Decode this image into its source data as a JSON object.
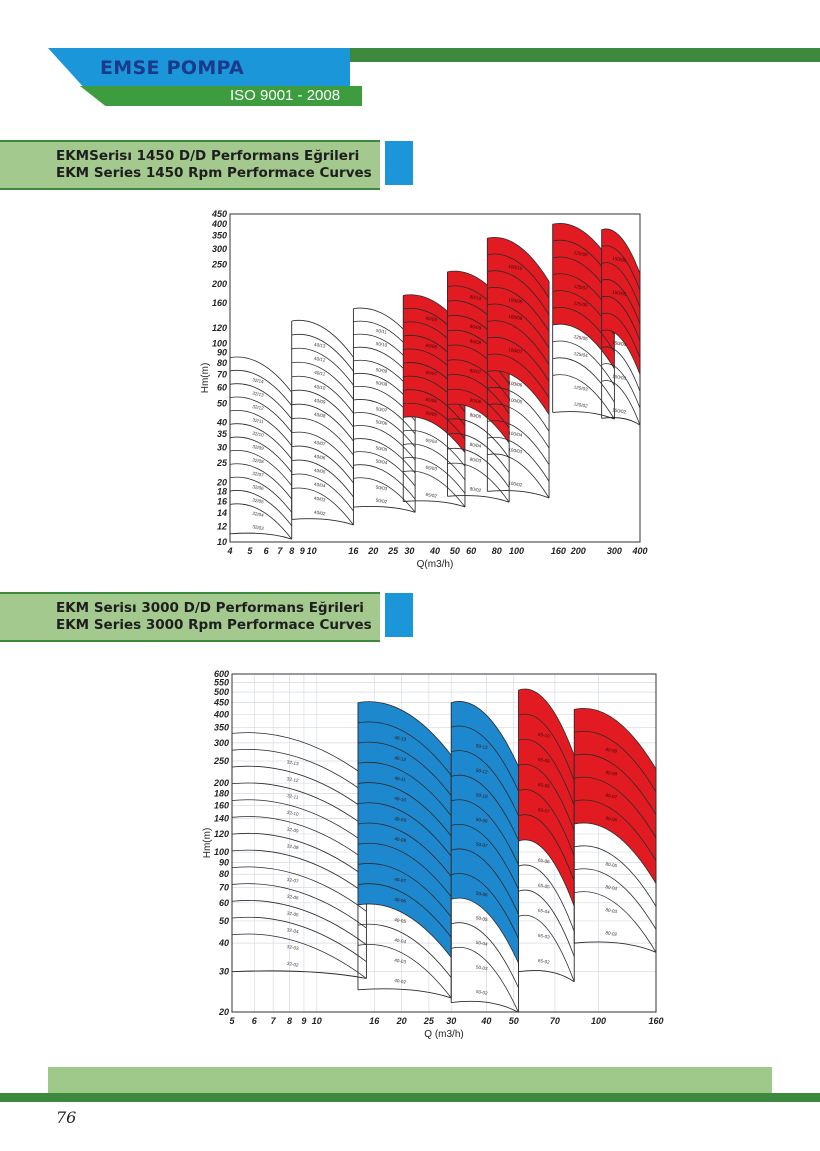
{
  "header": {
    "brand": "EMSE POMPA",
    "iso": "ISO 9001 - 2008"
  },
  "sections": [
    {
      "title_tr": "EKMSerisı 1450 D/D Performans Eğrileri",
      "title_en": "EKM Series 1450 Rpm Performace Curves"
    },
    {
      "title_tr": "EKM Serisı 3000 D/D Performans Eğrileri",
      "title_en": "EKM Series 3000 Rpm Performace Curves"
    }
  ],
  "footer": {
    "page_number": "76"
  },
  "chart_data": [
    {
      "type": "line",
      "chart_kind": "pump performance tile chart",
      "xlabel": "Q(m3/h)",
      "ylabel": "Hm(m)",
      "x_scale": "log",
      "y_scale": "log",
      "xlim": [
        4,
        400
      ],
      "ylim": [
        10,
        450
      ],
      "grid": false,
      "x_ticks": [
        4,
        5,
        6,
        7,
        8,
        9,
        10,
        16,
        20,
        25,
        30,
        40,
        50,
        60,
        80,
        100,
        160,
        200,
        300,
        400
      ],
      "y_ticks": [
        10,
        12,
        14,
        16,
        18,
        20,
        25,
        30,
        35,
        40,
        50,
        60,
        70,
        80,
        90,
        100,
        120,
        160,
        200,
        250,
        300,
        350,
        400,
        450
      ],
      "colors": {
        "highlight": "#e21b22",
        "outline": "#2b2b2b"
      },
      "series": [
        {
          "q": [
            4,
            8
          ],
          "h": [
            11,
            85
          ],
          "count": 12,
          "curve_labels": [
            "32/14",
            "32/13",
            "32/12",
            "32/11",
            "32/10",
            "32/09",
            "32/08",
            "32/07",
            "32/06",
            "32/05",
            "32/04",
            "32/03"
          ],
          "highlight_from": null
        },
        {
          "q": [
            8,
            16
          ],
          "h": [
            13,
            130
          ],
          "count": 13,
          "curve_labels": [
            "40/13",
            "40/12",
            "40/11",
            "40/10",
            "40/09",
            "40/08",
            "40/07",
            "40/06",
            "40/05",
            "40/04",
            "40/03",
            "40/02"
          ],
          "highlight_from": null
        },
        {
          "q": [
            16,
            32
          ],
          "h": [
            15,
            150
          ],
          "count": 14,
          "curve_labels": [
            "50/11",
            "50/10",
            "50/09",
            "50/08",
            "50/07",
            "50/06",
            "50/05",
            "50/04",
            "50/03",
            "50/02"
          ],
          "highlight_from": null
        },
        {
          "q": [
            28,
            56
          ],
          "h": [
            16,
            175
          ],
          "count": 14,
          "curve_labels": [
            "65/09",
            "65/08",
            "65/07",
            "65/06",
            "65/05",
            "65/04",
            "65/03",
            "65/02"
          ],
          "highlight_from": 9
        },
        {
          "q": [
            46,
            92
          ],
          "h": [
            17,
            230
          ],
          "count": 14,
          "curve_labels": [
            "80/10",
            "80/09",
            "80/08",
            "80/07",
            "80/06",
            "80/05",
            "80/04",
            "80/03",
            "80/02"
          ],
          "highlight_from": 9
        },
        {
          "q": [
            72,
            144
          ],
          "h": [
            18,
            340
          ],
          "count": 14,
          "curve_labels": [
            "100/10",
            "100/09",
            "100/08",
            "100/07",
            "100/06",
            "100/05",
            "100/04",
            "100/03",
            "100/02"
          ],
          "highlight_from": 8
        },
        {
          "q": [
            150,
            300
          ],
          "h": [
            45,
            400
          ],
          "count": 10,
          "curve_labels": [
            "125/08",
            "125/07",
            "125/06",
            "125/05",
            "125/04",
            "125/03",
            "125/02"
          ],
          "highlight_from": 6
        },
        {
          "q": [
            260,
            400
          ],
          "h": [
            42,
            375
          ],
          "count": 10,
          "curve_labels": [
            "150/06",
            "150/05",
            "150/04",
            "150/03",
            "150/02"
          ],
          "highlight_from": 6
        }
      ]
    },
    {
      "type": "line",
      "chart_kind": "pump performance tile chart",
      "xlabel": "Q (m3/h)",
      "ylabel": "Hm(m)",
      "x_scale": "log",
      "y_scale": "log",
      "xlim": [
        5,
        160
      ],
      "ylim": [
        20,
        600
      ],
      "grid": true,
      "x_ticks": [
        5,
        6,
        7,
        8,
        9,
        10,
        16,
        20,
        25,
        30,
        40,
        50,
        70,
        100,
        160
      ],
      "y_ticks": [
        20,
        30,
        40,
        50,
        60,
        70,
        80,
        90,
        100,
        120,
        140,
        160,
        180,
        200,
        250,
        300,
        350,
        400,
        450,
        500,
        550,
        600
      ],
      "colors": {
        "highlight_blue": "#1e88cf",
        "highlight_red": "#e21b22",
        "outline": "#2b2b2b"
      },
      "series": [
        {
          "q": [
            5,
            15
          ],
          "h": [
            30,
            330
          ],
          "count": 13,
          "curve_labels": [
            "32-13",
            "32-12",
            "32-11",
            "32-10",
            "32-09",
            "32-08",
            "32-07",
            "32-06",
            "32-05",
            "32-04",
            "32-03",
            "32-02"
          ],
          "highlight_from": null,
          "highlight_color": null
        },
        {
          "q": [
            14,
            30
          ],
          "h": [
            25,
            450
          ],
          "count": 13,
          "curve_labels": [
            "40-13",
            "40-12",
            "40-11",
            "40-10",
            "40-09",
            "40-08",
            "40-07",
            "40-06",
            "40-05",
            "40-04",
            "40-03",
            "40-02"
          ],
          "highlight_from": 10,
          "highlight_color": "blue"
        },
        {
          "q": [
            30,
            52
          ],
          "h": [
            22,
            450
          ],
          "count": 11,
          "curve_labels": [
            "50-13",
            "50-12",
            "50-10",
            "50-09",
            "50-07",
            "50-06",
            "50-05",
            "50-04",
            "50-03",
            "50-02"
          ],
          "highlight_from": 8,
          "highlight_color": "blue"
        },
        {
          "q": [
            52,
            82
          ],
          "h": [
            30,
            510
          ],
          "count": 10,
          "curve_labels": [
            "65-10",
            "65-09",
            "65-08",
            "65-07",
            "65-06",
            "65-05",
            "65-04",
            "65-03",
            "65-02"
          ],
          "highlight_from": 6,
          "highlight_color": "red"
        },
        {
          "q": [
            82,
            160
          ],
          "h": [
            40,
            420
          ],
          "count": 9,
          "curve_labels": [
            "80-09",
            "80-08",
            "80-07",
            "80-06",
            "80-05",
            "80-04",
            "80-03",
            "80-02"
          ],
          "highlight_from": 5,
          "highlight_color": "red"
        }
      ]
    }
  ]
}
